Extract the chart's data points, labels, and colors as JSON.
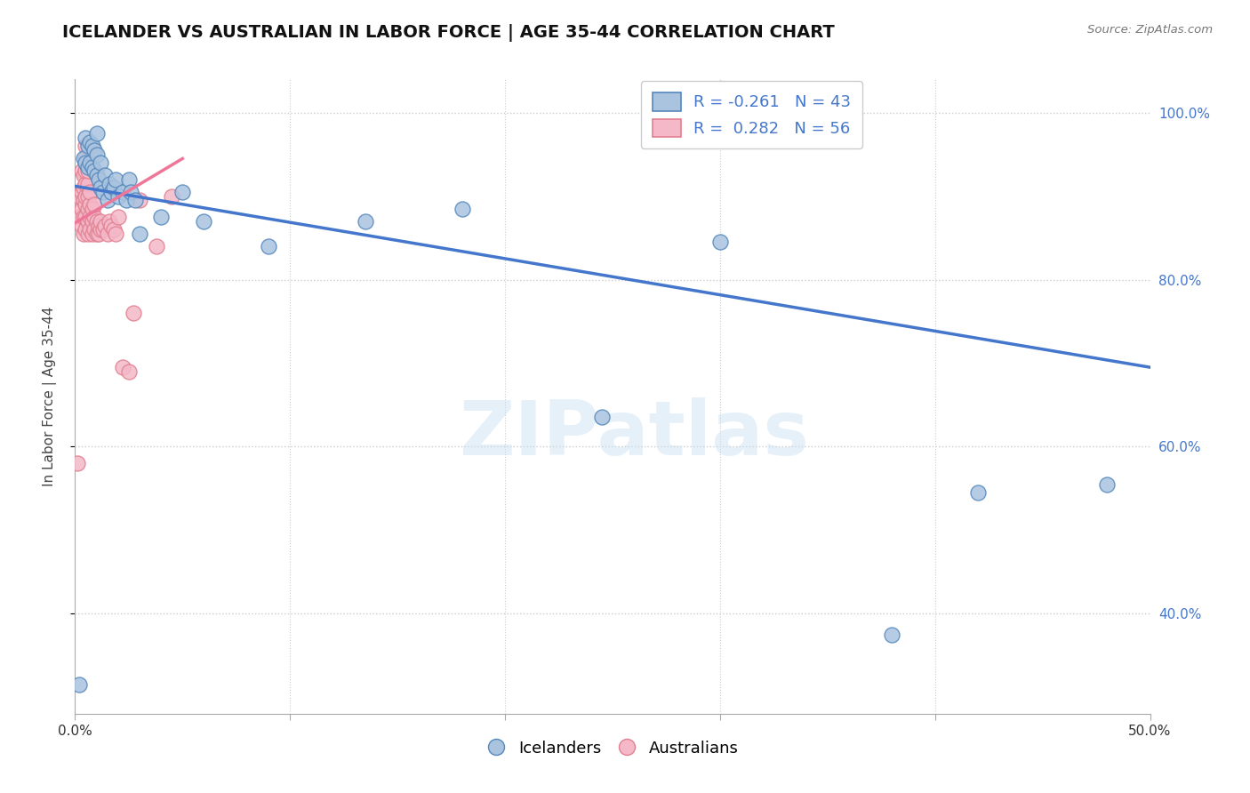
{
  "title": "ICELANDER VS AUSTRALIAN IN LABOR FORCE | AGE 35-44 CORRELATION CHART",
  "source_text": "Source: ZipAtlas.com",
  "ylabel": "In Labor Force | Age 35-44",
  "xmin": 0.0,
  "xmax": 0.5,
  "ymin": 0.28,
  "ymax": 1.04,
  "xticks": [
    0.0,
    0.1,
    0.2,
    0.3,
    0.4,
    0.5
  ],
  "xtick_labels": [
    "0.0%",
    "",
    "",
    "",
    "",
    "50.0%"
  ],
  "yticks": [
    0.4,
    0.6,
    0.8,
    1.0
  ],
  "ytick_labels": [
    "40.0%",
    "60.0%",
    "80.0%",
    "100.0%"
  ],
  "grid_color": "#cccccc",
  "background_color": "#ffffff",
  "blue_color": "#aac4e0",
  "pink_color": "#f4b8c8",
  "blue_edge_color": "#5588bb",
  "pink_edge_color": "#e08090",
  "blue_line_color": "#4477cc",
  "pink_line_color": "#ee7799",
  "R_blue": -0.261,
  "N_blue": 43,
  "R_pink": 0.282,
  "N_pink": 56,
  "legend_icelanders": "Icelanders",
  "legend_australians": "Australians",
  "blue_points_x": [
    0.002,
    0.004,
    0.005,
    0.005,
    0.006,
    0.006,
    0.007,
    0.007,
    0.008,
    0.008,
    0.009,
    0.009,
    0.01,
    0.01,
    0.01,
    0.011,
    0.012,
    0.012,
    0.013,
    0.014,
    0.015,
    0.016,
    0.017,
    0.018,
    0.019,
    0.02,
    0.022,
    0.024,
    0.025,
    0.026,
    0.028,
    0.03,
    0.04,
    0.05,
    0.06,
    0.09,
    0.135,
    0.18,
    0.245,
    0.3,
    0.38,
    0.42,
    0.48
  ],
  "blue_points_y": [
    0.315,
    0.945,
    0.94,
    0.97,
    0.935,
    0.96,
    0.94,
    0.965,
    0.935,
    0.96,
    0.93,
    0.955,
    0.925,
    0.95,
    0.975,
    0.92,
    0.91,
    0.94,
    0.905,
    0.925,
    0.895,
    0.915,
    0.905,
    0.91,
    0.92,
    0.9,
    0.905,
    0.895,
    0.92,
    0.905,
    0.895,
    0.855,
    0.875,
    0.905,
    0.87,
    0.84,
    0.87,
    0.885,
    0.635,
    0.845,
    0.375,
    0.545,
    0.555
  ],
  "pink_points_x": [
    0.001,
    0.002,
    0.002,
    0.003,
    0.003,
    0.003,
    0.003,
    0.004,
    0.004,
    0.004,
    0.004,
    0.004,
    0.005,
    0.005,
    0.005,
    0.005,
    0.005,
    0.005,
    0.005,
    0.005,
    0.006,
    0.006,
    0.006,
    0.006,
    0.006,
    0.006,
    0.007,
    0.007,
    0.007,
    0.007,
    0.008,
    0.008,
    0.008,
    0.009,
    0.009,
    0.009,
    0.01,
    0.01,
    0.011,
    0.011,
    0.012,
    0.012,
    0.013,
    0.014,
    0.015,
    0.016,
    0.017,
    0.018,
    0.019,
    0.02,
    0.022,
    0.025,
    0.027,
    0.03,
    0.038,
    0.045
  ],
  "pink_points_y": [
    0.58,
    0.875,
    0.9,
    0.865,
    0.885,
    0.905,
    0.93,
    0.855,
    0.875,
    0.895,
    0.91,
    0.925,
    0.86,
    0.875,
    0.89,
    0.9,
    0.915,
    0.93,
    0.945,
    0.96,
    0.855,
    0.87,
    0.885,
    0.9,
    0.915,
    0.93,
    0.86,
    0.875,
    0.89,
    0.905,
    0.855,
    0.87,
    0.885,
    0.86,
    0.875,
    0.89,
    0.855,
    0.87,
    0.855,
    0.865,
    0.86,
    0.87,
    0.86,
    0.865,
    0.855,
    0.87,
    0.865,
    0.86,
    0.855,
    0.875,
    0.695,
    0.69,
    0.76,
    0.895,
    0.84,
    0.9
  ],
  "blue_trend_x0": 0.0,
  "blue_trend_y0": 0.912,
  "blue_trend_x1": 0.5,
  "blue_trend_y1": 0.695,
  "pink_trend_x0": 0.0,
  "pink_trend_y0": 0.868,
  "pink_trend_x1": 0.05,
  "pink_trend_y1": 0.945,
  "watermark": "ZIPatlas",
  "title_fontsize": 14,
  "axis_label_fontsize": 11,
  "tick_fontsize": 11
}
